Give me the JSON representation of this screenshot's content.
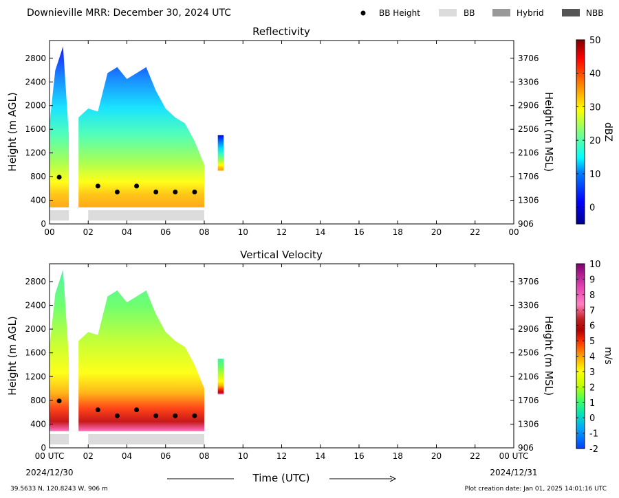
{
  "header": {
    "title": "Downieville MRR:  December 30, 2024 UTC",
    "legend": [
      {
        "label": "BB Height",
        "kind": "dot",
        "color": "#000000"
      },
      {
        "label": "BB",
        "kind": "box",
        "color": "#dcdcdc"
      },
      {
        "label": "Hybrid",
        "kind": "box",
        "color": "#999999"
      },
      {
        "label": "NBB",
        "kind": "box",
        "color": "#555555"
      }
    ]
  },
  "footer": {
    "location": "39.5633 N, 120.8243 W, 906 m",
    "created": "Plot creation date: Jan 01, 2025 14:01:16 UTC",
    "xlabel": "Time (UTC)",
    "start_date": "2024/12/30",
    "end_date": "2024/12/31"
  },
  "chart_data": [
    {
      "type": "heatmap",
      "title": "Reflectivity",
      "ylabel": "Height (m AGL)",
      "ylabel_right": "Height (m MSL)",
      "xlim": [
        0,
        24
      ],
      "ylim": [
        0,
        3100
      ],
      "x_ticks": [
        "00",
        "02",
        "04",
        "06",
        "08",
        "10",
        "12",
        "14",
        "16",
        "18",
        "20",
        "22",
        "00"
      ],
      "y_ticks": [
        0,
        400,
        800,
        1200,
        1600,
        2000,
        2400,
        2800
      ],
      "y_ticks_right": [
        "906",
        "1306",
        "1706",
        "2106",
        "2506",
        "2906",
        "3306",
        "3706"
      ],
      "colorbar": {
        "label": "dBZ",
        "min": -5,
        "max": 50,
        "ticks": [
          0,
          10,
          20,
          30,
          40,
          50
        ]
      },
      "bb_height": [
        {
          "x": 0.5,
          "y": 790
        },
        {
          "x": 2.5,
          "y": 640
        },
        {
          "x": 3.5,
          "y": 540
        },
        {
          "x": 4.5,
          "y": 640
        },
        {
          "x": 5.5,
          "y": 540
        },
        {
          "x": 6.5,
          "y": 540
        },
        {
          "x": 7.5,
          "y": 540
        }
      ],
      "bb_segments": [
        {
          "start": 0.0,
          "end": 1.0,
          "type": "BB"
        },
        {
          "start": 2.0,
          "end": 8.0,
          "type": "BB"
        }
      ],
      "echo_top": [
        {
          "x": 0.0,
          "y": 1700
        },
        {
          "x": 0.3,
          "y": 2600
        },
        {
          "x": 0.7,
          "y": 3000
        },
        {
          "x": 1.0,
          "y": 1500
        },
        {
          "x": 1.5,
          "y": 1800
        },
        {
          "x": 2.0,
          "y": 1950
        },
        {
          "x": 2.5,
          "y": 1900
        },
        {
          "x": 3.0,
          "y": 2550
        },
        {
          "x": 3.5,
          "y": 2650
        },
        {
          "x": 4.0,
          "y": 2450
        },
        {
          "x": 4.5,
          "y": 2550
        },
        {
          "x": 5.0,
          "y": 2650
        },
        {
          "x": 5.5,
          "y": 2250
        },
        {
          "x": 6.0,
          "y": 1950
        },
        {
          "x": 6.5,
          "y": 1800
        },
        {
          "x": 7.0,
          "y": 1700
        },
        {
          "x": 7.5,
          "y": 1400
        },
        {
          "x": 8.0,
          "y": 1000
        }
      ],
      "isolated_echo": {
        "start": 8.7,
        "end": 9.0,
        "bottom": 900,
        "top": 1500
      }
    },
    {
      "type": "heatmap",
      "title": "Vertical Velocity",
      "ylabel": "Height (m AGL)",
      "ylabel_right": "Height (m MSL)",
      "xlim": [
        0,
        24
      ],
      "ylim": [
        0,
        3100
      ],
      "x_ticks": [
        "00 UTC",
        "02",
        "04",
        "06",
        "08",
        "10",
        "12",
        "14",
        "16",
        "18",
        "20",
        "22",
        "00 UTC"
      ],
      "y_ticks": [
        0,
        400,
        800,
        1200,
        1600,
        2000,
        2400,
        2800
      ],
      "y_ticks_right": [
        "906",
        "1306",
        "1706",
        "2106",
        "2506",
        "2906",
        "3306",
        "3706"
      ],
      "colorbar": {
        "label": "m/s",
        "min": -2,
        "max": 10,
        "ticks": [
          "-2",
          "-1",
          "0",
          "1",
          "2",
          "3",
          "4",
          "5",
          "6",
          "7",
          "8",
          "9",
          "10"
        ]
      },
      "bb_height": [
        {
          "x": 0.5,
          "y": 790
        },
        {
          "x": 2.5,
          "y": 640
        },
        {
          "x": 3.5,
          "y": 540
        },
        {
          "x": 4.5,
          "y": 640
        },
        {
          "x": 5.5,
          "y": 540
        },
        {
          "x": 6.5,
          "y": 540
        },
        {
          "x": 7.5,
          "y": 540
        }
      ],
      "bb_segments": [
        {
          "start": 0.0,
          "end": 1.0,
          "type": "BB"
        },
        {
          "start": 2.0,
          "end": 8.0,
          "type": "BB"
        }
      ],
      "echo_top": [
        {
          "x": 0.0,
          "y": 1700
        },
        {
          "x": 0.3,
          "y": 2600
        },
        {
          "x": 0.7,
          "y": 3000
        },
        {
          "x": 1.0,
          "y": 1500
        },
        {
          "x": 1.5,
          "y": 1800
        },
        {
          "x": 2.0,
          "y": 1950
        },
        {
          "x": 2.5,
          "y": 1900
        },
        {
          "x": 3.0,
          "y": 2550
        },
        {
          "x": 3.5,
          "y": 2650
        },
        {
          "x": 4.0,
          "y": 2450
        },
        {
          "x": 4.5,
          "y": 2550
        },
        {
          "x": 5.0,
          "y": 2650
        },
        {
          "x": 5.5,
          "y": 2250
        },
        {
          "x": 6.0,
          "y": 1950
        },
        {
          "x": 6.5,
          "y": 1800
        },
        {
          "x": 7.0,
          "y": 1700
        },
        {
          "x": 7.5,
          "y": 1400
        },
        {
          "x": 8.0,
          "y": 1000
        }
      ],
      "isolated_echo": {
        "start": 8.7,
        "end": 9.0,
        "bottom": 900,
        "top": 1500
      }
    }
  ]
}
